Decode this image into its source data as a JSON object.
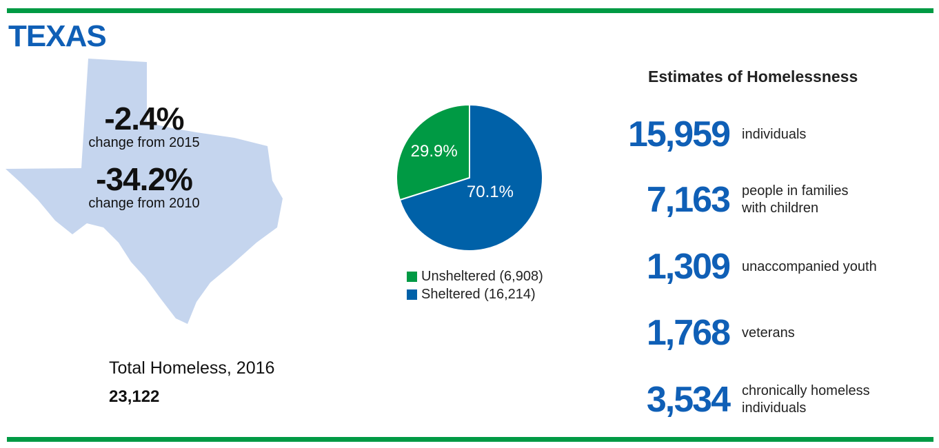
{
  "title": "TEXAS",
  "changes": [
    {
      "value": "-2.4%",
      "label": "change from 2015"
    },
    {
      "value": "-34.2%",
      "label": "change from 2010"
    }
  ],
  "total": {
    "label": "Total Homeless, 2016",
    "value": "23,122"
  },
  "chart_data": {
    "type": "pie",
    "categories": [
      "Unsheltered (6,908)",
      "Sheltered (16,214)"
    ],
    "values": [
      29.9,
      70.1
    ],
    "value_labels": [
      "29.9%",
      "70.1%"
    ],
    "colors": [
      "#009a44",
      "#0061a8"
    ]
  },
  "estimates": {
    "title": "Estimates of Homelessness",
    "items": [
      {
        "value": "15,959",
        "lines": [
          "individuals"
        ]
      },
      {
        "value": "7,163",
        "lines": [
          "people in families",
          "with children"
        ]
      },
      {
        "value": "1,309",
        "lines": [
          "unaccompanied youth"
        ]
      },
      {
        "value": "1,768",
        "lines": [
          "veterans"
        ]
      },
      {
        "value": "3,534",
        "lines": [
          "chronically homeless",
          "individuals"
        ]
      }
    ]
  }
}
